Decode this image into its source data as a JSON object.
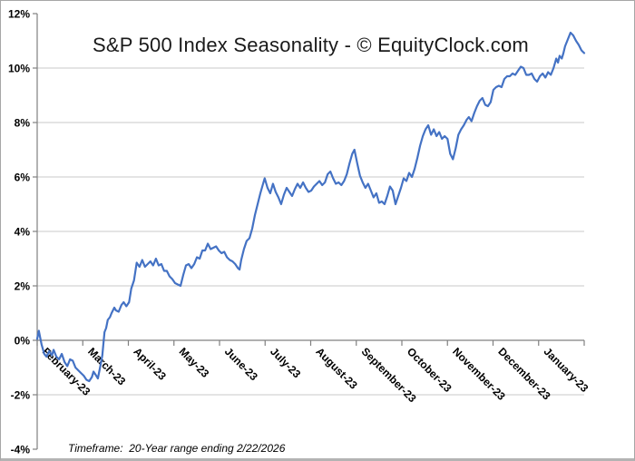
{
  "chart": {
    "title": "S&P 500 Index Seasonality - © EquityClock.com",
    "footer": "Timeframe:  20-Year range ending 2/22/2026",
    "line_color": "#4472c4",
    "grid_color": "#c9c9c9",
    "axis_color": "#808080",
    "text_color": "#000000"
  },
  "chart_data": {
    "type": "line",
    "title": "S&P 500 Index Seasonality - © EquityClock.com",
    "footnote": "Timeframe: 20-Year range ending 2/22/2026",
    "xlabel": "",
    "ylabel": "",
    "ylim": [
      -4,
      12
    ],
    "y_unit": "%",
    "grid": "horizontal",
    "legend": "none",
    "y_ticks": [
      {
        "label": "12%",
        "value": 12,
        "gridline": false
      },
      {
        "label": "10%",
        "value": 10,
        "gridline": true
      },
      {
        "label": "8%",
        "value": 8,
        "gridline": true
      },
      {
        "label": "6%",
        "value": 6,
        "gridline": true
      },
      {
        "label": "4%",
        "value": 4,
        "gridline": true
      },
      {
        "label": "2%",
        "value": 2,
        "gridline": true
      },
      {
        "label": "0%",
        "value": 0,
        "gridline": true
      },
      {
        "label": "-2%",
        "value": -2,
        "gridline": true
      },
      {
        "label": "-4%",
        "value": -4,
        "gridline": false
      }
    ],
    "x_categories": [
      "February-23",
      "March-23",
      "April-23",
      "May-23",
      "June-23",
      "July-23",
      "August-23",
      "September-23",
      "October-23",
      "November-23",
      "December-23",
      "January-23"
    ],
    "series": [
      {
        "name": "S&P 500 Index Seasonality",
        "points": [
          [
            0.0,
            0.05
          ],
          [
            0.003,
            0.35
          ],
          [
            0.008,
            -0.15
          ],
          [
            0.013,
            -0.5
          ],
          [
            0.017,
            -0.6
          ],
          [
            0.022,
            -0.4
          ],
          [
            0.027,
            -0.55
          ],
          [
            0.03,
            -0.35
          ],
          [
            0.035,
            -0.6
          ],
          [
            0.04,
            -0.7
          ],
          [
            0.045,
            -0.5
          ],
          [
            0.05,
            -0.8
          ],
          [
            0.055,
            -0.95
          ],
          [
            0.06,
            -0.7
          ],
          [
            0.065,
            -0.75
          ],
          [
            0.07,
            -1.0
          ],
          [
            0.075,
            -1.1
          ],
          [
            0.08,
            -1.2
          ],
          [
            0.085,
            -1.3
          ],
          [
            0.09,
            -1.45
          ],
          [
            0.095,
            -1.5
          ],
          [
            0.1,
            -1.35
          ],
          [
            0.103,
            -1.15
          ],
          [
            0.108,
            -1.3
          ],
          [
            0.111,
            -1.4
          ],
          [
            0.116,
            -0.9
          ],
          [
            0.119,
            -0.55
          ],
          [
            0.123,
            0.3
          ],
          [
            0.126,
            0.45
          ],
          [
            0.129,
            0.75
          ],
          [
            0.133,
            0.85
          ],
          [
            0.136,
            1.0
          ],
          [
            0.141,
            1.2
          ],
          [
            0.144,
            1.1
          ],
          [
            0.149,
            1.05
          ],
          [
            0.154,
            1.3
          ],
          [
            0.158,
            1.4
          ],
          [
            0.163,
            1.25
          ],
          [
            0.168,
            1.4
          ],
          [
            0.172,
            1.9
          ],
          [
            0.177,
            2.2
          ],
          [
            0.182,
            2.85
          ],
          [
            0.187,
            2.7
          ],
          [
            0.192,
            2.95
          ],
          [
            0.197,
            2.7
          ],
          [
            0.202,
            2.8
          ],
          [
            0.207,
            2.9
          ],
          [
            0.212,
            2.75
          ],
          [
            0.217,
            3.0
          ],
          [
            0.222,
            2.75
          ],
          [
            0.227,
            2.8
          ],
          [
            0.232,
            2.55
          ],
          [
            0.237,
            2.55
          ],
          [
            0.242,
            2.35
          ],
          [
            0.247,
            2.25
          ],
          [
            0.252,
            2.1
          ],
          [
            0.257,
            2.05
          ],
          [
            0.262,
            2.0
          ],
          [
            0.267,
            2.4
          ],
          [
            0.272,
            2.75
          ],
          [
            0.277,
            2.8
          ],
          [
            0.282,
            2.65
          ],
          [
            0.287,
            2.8
          ],
          [
            0.292,
            3.05
          ],
          [
            0.297,
            3.0
          ],
          [
            0.302,
            3.3
          ],
          [
            0.307,
            3.3
          ],
          [
            0.312,
            3.55
          ],
          [
            0.317,
            3.35
          ],
          [
            0.322,
            3.4
          ],
          [
            0.327,
            3.45
          ],
          [
            0.332,
            3.3
          ],
          [
            0.337,
            3.2
          ],
          [
            0.342,
            3.25
          ],
          [
            0.347,
            3.05
          ],
          [
            0.352,
            2.95
          ],
          [
            0.357,
            2.9
          ],
          [
            0.362,
            2.8
          ],
          [
            0.367,
            2.65
          ],
          [
            0.37,
            2.6
          ],
          [
            0.373,
            2.95
          ],
          [
            0.378,
            3.35
          ],
          [
            0.383,
            3.65
          ],
          [
            0.388,
            3.75
          ],
          [
            0.393,
            4.1
          ],
          [
            0.398,
            4.6
          ],
          [
            0.403,
            5.0
          ],
          [
            0.408,
            5.4
          ],
          [
            0.413,
            5.75
          ],
          [
            0.416,
            5.95
          ],
          [
            0.421,
            5.6
          ],
          [
            0.426,
            5.4
          ],
          [
            0.431,
            5.75
          ],
          [
            0.436,
            5.45
          ],
          [
            0.441,
            5.25
          ],
          [
            0.446,
            5.0
          ],
          [
            0.451,
            5.35
          ],
          [
            0.456,
            5.6
          ],
          [
            0.461,
            5.45
          ],
          [
            0.466,
            5.3
          ],
          [
            0.471,
            5.55
          ],
          [
            0.476,
            5.75
          ],
          [
            0.481,
            5.6
          ],
          [
            0.486,
            5.8
          ],
          [
            0.491,
            5.6
          ],
          [
            0.496,
            5.45
          ],
          [
            0.501,
            5.5
          ],
          [
            0.506,
            5.65
          ],
          [
            0.511,
            5.75
          ],
          [
            0.516,
            5.85
          ],
          [
            0.521,
            5.7
          ],
          [
            0.526,
            5.8
          ],
          [
            0.531,
            6.1
          ],
          [
            0.536,
            6.2
          ],
          [
            0.541,
            5.95
          ],
          [
            0.546,
            5.75
          ],
          [
            0.551,
            5.8
          ],
          [
            0.556,
            5.7
          ],
          [
            0.561,
            5.85
          ],
          [
            0.566,
            6.1
          ],
          [
            0.571,
            6.5
          ],
          [
            0.576,
            6.85
          ],
          [
            0.58,
            7.0
          ],
          [
            0.585,
            6.5
          ],
          [
            0.59,
            6.05
          ],
          [
            0.595,
            5.8
          ],
          [
            0.6,
            5.6
          ],
          [
            0.605,
            5.75
          ],
          [
            0.61,
            5.5
          ],
          [
            0.615,
            5.25
          ],
          [
            0.62,
            5.4
          ],
          [
            0.625,
            5.05
          ],
          [
            0.63,
            5.1
          ],
          [
            0.635,
            5.0
          ],
          [
            0.64,
            5.3
          ],
          [
            0.645,
            5.65
          ],
          [
            0.65,
            5.5
          ],
          [
            0.655,
            5.0
          ],
          [
            0.66,
            5.3
          ],
          [
            0.665,
            5.6
          ],
          [
            0.67,
            5.95
          ],
          [
            0.675,
            5.85
          ],
          [
            0.68,
            6.15
          ],
          [
            0.685,
            6.0
          ],
          [
            0.69,
            6.3
          ],
          [
            0.695,
            6.7
          ],
          [
            0.7,
            7.15
          ],
          [
            0.705,
            7.5
          ],
          [
            0.71,
            7.75
          ],
          [
            0.715,
            7.9
          ],
          [
            0.72,
            7.55
          ],
          [
            0.725,
            7.75
          ],
          [
            0.73,
            7.5
          ],
          [
            0.735,
            7.65
          ],
          [
            0.74,
            7.4
          ],
          [
            0.745,
            7.5
          ],
          [
            0.75,
            7.4
          ],
          [
            0.755,
            6.85
          ],
          [
            0.76,
            6.65
          ],
          [
            0.765,
            7.05
          ],
          [
            0.77,
            7.55
          ],
          [
            0.775,
            7.75
          ],
          [
            0.78,
            7.9
          ],
          [
            0.785,
            8.1
          ],
          [
            0.789,
            8.2
          ],
          [
            0.794,
            8.05
          ],
          [
            0.799,
            8.35
          ],
          [
            0.804,
            8.6
          ],
          [
            0.809,
            8.8
          ],
          [
            0.814,
            8.9
          ],
          [
            0.819,
            8.65
          ],
          [
            0.824,
            8.6
          ],
          [
            0.829,
            8.75
          ],
          [
            0.834,
            9.2
          ],
          [
            0.839,
            9.3
          ],
          [
            0.844,
            9.35
          ],
          [
            0.849,
            9.3
          ],
          [
            0.854,
            9.6
          ],
          [
            0.859,
            9.7
          ],
          [
            0.864,
            9.7
          ],
          [
            0.869,
            9.8
          ],
          [
            0.874,
            9.75
          ],
          [
            0.879,
            9.9
          ],
          [
            0.884,
            10.05
          ],
          [
            0.889,
            10.0
          ],
          [
            0.894,
            9.75
          ],
          [
            0.899,
            9.75
          ],
          [
            0.904,
            9.8
          ],
          [
            0.909,
            9.6
          ],
          [
            0.914,
            9.5
          ],
          [
            0.919,
            9.7
          ],
          [
            0.924,
            9.8
          ],
          [
            0.929,
            9.65
          ],
          [
            0.934,
            9.85
          ],
          [
            0.939,
            9.75
          ],
          [
            0.944,
            10.0
          ],
          [
            0.949,
            10.35
          ],
          [
            0.952,
            10.2
          ],
          [
            0.955,
            10.45
          ],
          [
            0.959,
            10.35
          ],
          [
            0.962,
            10.55
          ],
          [
            0.965,
            10.8
          ],
          [
            0.97,
            11.05
          ],
          [
            0.975,
            11.3
          ],
          [
            0.98,
            11.2
          ],
          [
            0.985,
            11.0
          ],
          [
            0.99,
            10.85
          ],
          [
            0.995,
            10.65
          ],
          [
            1.0,
            10.55
          ]
        ]
      }
    ]
  }
}
